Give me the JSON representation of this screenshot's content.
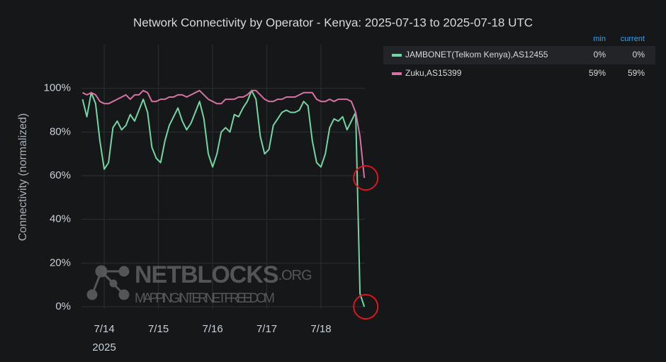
{
  "chart_data": {
    "type": "line",
    "title": "Network Connectivity by Operator - Kenya: 2025-07-13 to 2025-07-18 UTC",
    "y_axis_label": "Connectivity (normalized)",
    "x_axis_sublabel": "2025",
    "x": [
      13.6,
      13.68,
      13.76,
      13.84,
      13.92,
      14.0,
      14.08,
      14.16,
      14.24,
      14.32,
      14.4,
      14.48,
      14.56,
      14.64,
      14.72,
      14.8,
      14.88,
      14.96,
      15.04,
      15.12,
      15.2,
      15.28,
      15.36,
      15.44,
      15.52,
      15.6,
      15.68,
      15.76,
      15.84,
      15.92,
      16.0,
      16.08,
      16.16,
      16.24,
      16.32,
      16.4,
      16.48,
      16.56,
      16.64,
      16.72,
      16.8,
      16.88,
      16.96,
      17.04,
      17.12,
      17.2,
      17.28,
      17.36,
      17.44,
      17.52,
      17.6,
      17.68,
      17.76,
      17.84,
      17.92,
      18.0,
      18.08,
      18.16,
      18.24,
      18.32,
      18.4,
      18.48,
      18.56,
      18.64,
      18.72,
      18.8
    ],
    "xlim": [
      13.58,
      18.81
    ],
    "xticks": [
      {
        "value": 14,
        "label": "7/14"
      },
      {
        "value": 15,
        "label": "7/15"
      },
      {
        "value": 16,
        "label": "7/16"
      },
      {
        "value": 17,
        "label": "7/17"
      },
      {
        "value": 18,
        "label": "7/18"
      }
    ],
    "ylim": [
      0,
      120
    ],
    "yticks": [
      {
        "value": 0,
        "label": "0%"
      },
      {
        "value": 20,
        "label": "20%"
      },
      {
        "value": 40,
        "label": "40%"
      },
      {
        "value": 60,
        "label": "60%"
      },
      {
        "value": 80,
        "label": "80%"
      },
      {
        "value": 100,
        "label": "100%"
      }
    ],
    "grid": true,
    "legend_headers": [
      "min",
      "current"
    ],
    "series": [
      {
        "name": "JAMBONET(Telkom Kenya),AS12455",
        "color": "#73d5a3",
        "min": "0%",
        "current": "0%",
        "values": [
          95,
          87,
          98,
          93,
          76,
          63,
          66,
          82,
          85,
          81,
          83,
          88,
          85,
          90,
          95,
          89,
          73,
          68,
          66,
          76,
          83,
          87,
          91,
          85,
          81,
          84,
          89,
          94,
          86,
          70,
          64,
          70,
          80,
          82,
          80,
          88,
          87,
          91,
          94,
          99,
          95,
          78,
          70,
          72,
          83,
          86,
          89,
          90,
          89,
          89,
          90,
          94,
          92,
          76,
          66,
          64,
          70,
          82,
          86,
          85,
          87,
          81,
          85,
          89,
          6,
          0
        ]
      },
      {
        "name": "Zuku,AS15399",
        "color": "#d672a3",
        "min": "59%",
        "current": "59%",
        "values": [
          98,
          97,
          98,
          97,
          94,
          93,
          93,
          94,
          95,
          96,
          97,
          95,
          97,
          97,
          99,
          98,
          94,
          94,
          95,
          95,
          96,
          96,
          97,
          97,
          96,
          97,
          98,
          99,
          97,
          95,
          94,
          93,
          93,
          95,
          95,
          95,
          96,
          96,
          97,
          99,
          99,
          97,
          95,
          94,
          94,
          95,
          95,
          96,
          96,
          96,
          97,
          98,
          98,
          98,
          95,
          94,
          94,
          95,
          94,
          95,
          95,
          95,
          94,
          89,
          78,
          59
        ]
      }
    ],
    "watermark": {
      "title": "NETBLOCKS",
      "suffix": ".ORG",
      "tagline": "MAPPING INTERNET FREEDOM"
    }
  }
}
